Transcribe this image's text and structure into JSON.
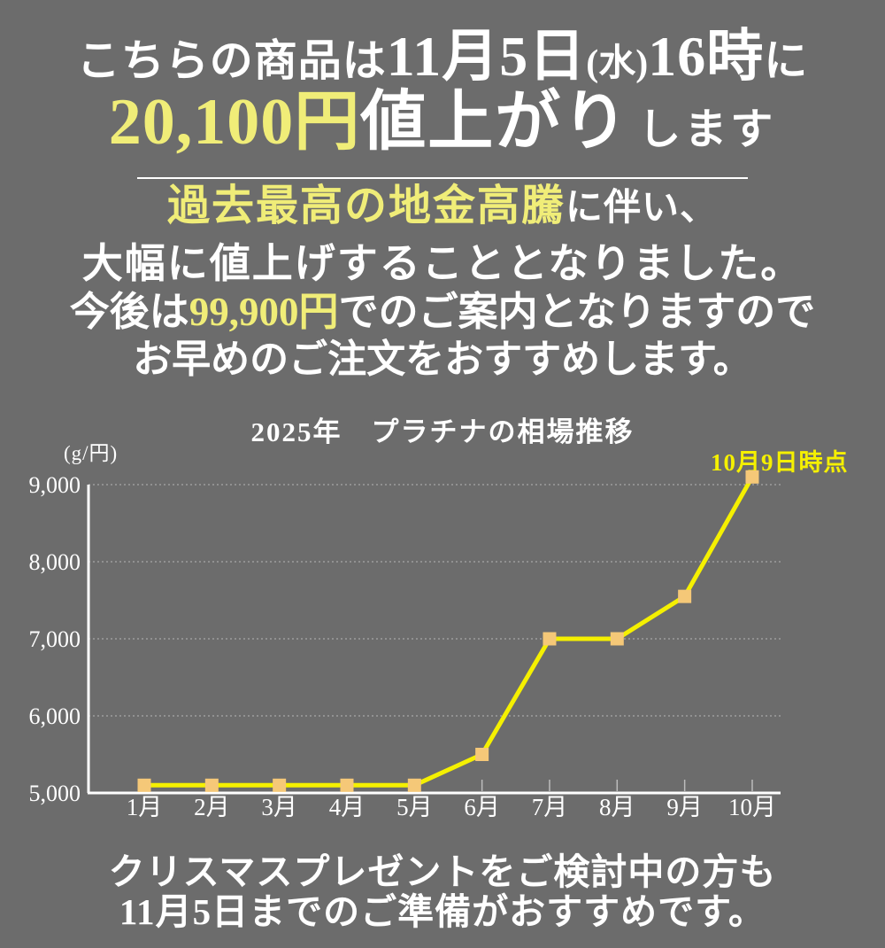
{
  "colors": {
    "background": "#6c6c6c",
    "text_white": "#ffffff",
    "pale_yellow_accent": "#f0ed78",
    "bright_yellow_accent": "#f5f000",
    "marker_orange": "#f5c878"
  },
  "headline": {
    "line1_pre": "こちらの商品は",
    "line1_date": "11月5日",
    "line1_paren": "(水)",
    "line1_time": "16時",
    "line1_post": "に",
    "line2_amount": "20,100円",
    "line2_emphasis": "値上がり",
    "line2_suffix": "します"
  },
  "notice": {
    "line1_highlight": "過去最高の地金高騰",
    "line1_rest": "に伴い、",
    "line2": "大幅に値上げすることとなりました。",
    "line3_pre": "今後は",
    "line3_price": "99,900円",
    "line3_post": "でのご案内となりますので",
    "line4": "お早めのご注文をおすすめします。"
  },
  "chart_data": {
    "type": "line",
    "title": "2025年　プラチナの相場推移",
    "unit_label": "(g/円)",
    "annotation": "10月9日時点",
    "categories": [
      "1月",
      "2月",
      "3月",
      "4月",
      "5月",
      "6月",
      "7月",
      "8月",
      "9月",
      "10月"
    ],
    "values": [
      5100,
      5100,
      5100,
      5100,
      5100,
      5500,
      7000,
      7000,
      7550,
      9100
    ],
    "ylim": [
      5000,
      9000
    ],
    "ytick_step": 1000,
    "ytick_labels": [
      "5,000",
      "6,000",
      "7,000",
      "8,000",
      "9,000"
    ],
    "grid": "dotted horizontal gridlines at each 1,000",
    "legend": "none",
    "line_color": "#f5f000",
    "marker_color": "#f5c878",
    "marker_shape": "square"
  },
  "footer": {
    "line1": "クリスマスプレゼントをご検討中の方も",
    "line2": "11月5日までのご準備がおすすめです。"
  }
}
